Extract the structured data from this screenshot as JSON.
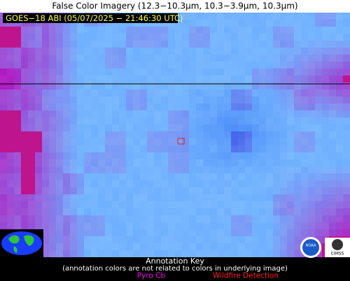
{
  "header": {
    "title": "False Color Imagery (12.3−10.3µm, 10.3−3.9µm, 10.3µm)"
  },
  "image": {
    "label": "GOES−18 ABI (05/07/2025 − 21:46:30 UTC)"
  },
  "annotation_key": {
    "title": "Annotation Key",
    "note": "(annotation colors are not related to colors in underlying image)",
    "items": [
      {
        "label": "Pyro Cb"
      },
      {
        "label": "Wildfire Detection"
      }
    ]
  },
  "logos": [
    "NOAA",
    "CIMSS"
  ]
}
